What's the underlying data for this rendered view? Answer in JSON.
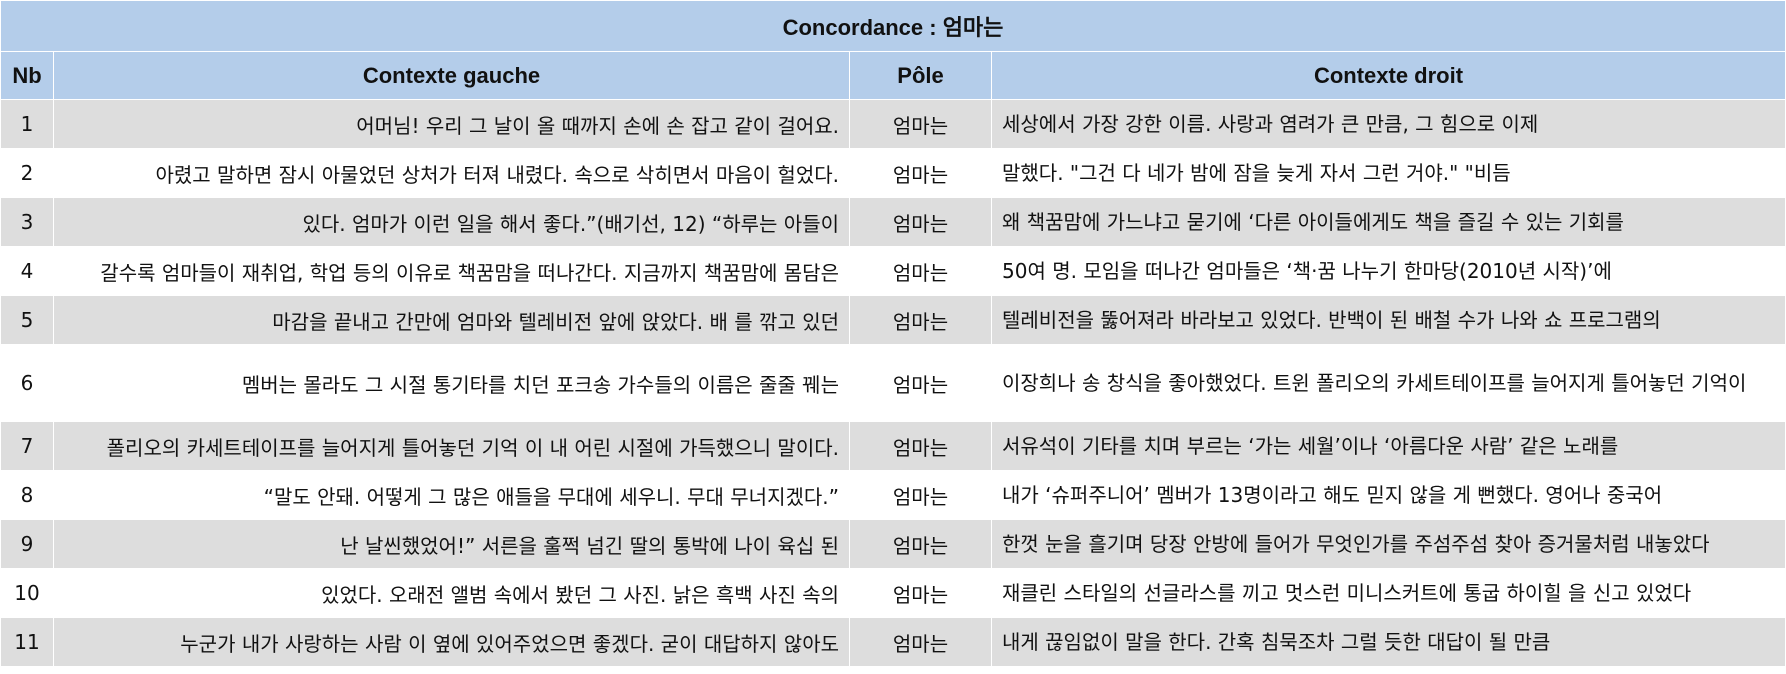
{
  "title": "Concordance : 엄마는",
  "headers": {
    "nb": "Nb",
    "left": "Contexte gauche",
    "pole": "Pôle",
    "right": "Contexte droit"
  },
  "rows": [
    {
      "nb": "1",
      "left": "어머님! 우리 그 날이 올 때까지 손에 손 잡고 같이 걸어요.",
      "pole": "엄마는",
      "right": "세상에서 가장 강한 이름. 사랑과 염려가 큰 만큼, 그 힘으로 이제"
    },
    {
      "nb": "2",
      "left": "아렸고 말하면 잠시 아물었던 상처가 터져 내렸다. 속으로 삭히면서 마음이 헐었다.",
      "pole": "엄마는",
      "right": "말했다. \"그건 다 네가 밤에 잠을 늦게 자서 그런 거야.\" \"비듬"
    },
    {
      "nb": "3",
      "left": "있다. 엄마가 이런 일을 해서 좋다.”(배기선, 12) “하루는 아들이",
      "pole": "엄마는",
      "right": "왜 책꿈맘에 가느냐고 묻기에 ‘다른 아이들에게도 책을 즐길 수 있는 기회를"
    },
    {
      "nb": "4",
      "left": "갈수록 엄마들이 재취업, 학업 등의 이유로 책꿈맘을 떠나간다. 지금까지 책꿈맘에 몸담은",
      "pole": "엄마는",
      "right": "50여 명. 모임을 떠나간 엄마들은 ‘책·꿈 나누기 한마당(2010년 시작)’에"
    },
    {
      "nb": "5",
      "left": "마감을 끝내고 간만에 엄마와 텔레비전 앞에 앉았다. 배 를 깎고 있던",
      "pole": "엄마는",
      "right": "텔레비전을 뚫어져라 바라보고 있었다. 반백이 된 배철 수가 나와 쇼 프로그램의"
    },
    {
      "nb": "6",
      "left": "멤버는 몰라도 그 시절 통기타를 치던 포크송 가수들의 이름은 줄줄 꿰는",
      "pole": "엄마는",
      "right": "이장희나 송 창식을 좋아했었다. 트윈 폴리오의 카세트테이프를 늘어지게 틀어놓던 기억이"
    },
    {
      "nb": "7",
      "left": "폴리오의 카세트테이프를 늘어지게 틀어놓던 기억 이 내 어린 시절에 가득했으니 말이다.",
      "pole": "엄마는",
      "right": "서유석이 기타를 치며 부르는 ‘가는 세월’이나 ‘아름다운 사람’ 같은 노래를"
    },
    {
      "nb": "8",
      "left": "“말도 안돼. 어떻게 그 많은 애들을 무대에 세우니. 무대 무너지겠다.”",
      "pole": "엄마는",
      "right": "내가 ‘슈퍼주니어’ 멤버가 13명이라고 해도 믿지 않을 게 뻔했다. 영어나 중국어"
    },
    {
      "nb": "9",
      "left": "난 날씬했었어!” 서른을 훌쩍 넘긴 딸의 통박에 나이 육십 된",
      "pole": "엄마는",
      "right": "한껏 눈을 흘기며 당장 안방에 들어가 무엇인가를 주섬주섬 찾아 증거물처럼 내놓았다"
    },
    {
      "nb": "10",
      "left": "있었다. 오래전 앨범 속에서 봤던 그 사진. 낡은 흑백 사진 속의",
      "pole": "엄마는",
      "right": "재클린 스타일의 선글라스를 끼고 멋스런 미니스커트에 통굽 하이힐 을 신고 있었다"
    },
    {
      "nb": "11",
      "left": "누군가 내가 사랑하는 사람 이 옆에 있어주었으면 좋겠다. 굳이 대답하지 않아도",
      "pole": "엄마는",
      "right": "내게 끊임없이 말을 한다. 간혹 침묵조차 그럴 듯한 대답이 될 만큼"
    }
  ]
}
